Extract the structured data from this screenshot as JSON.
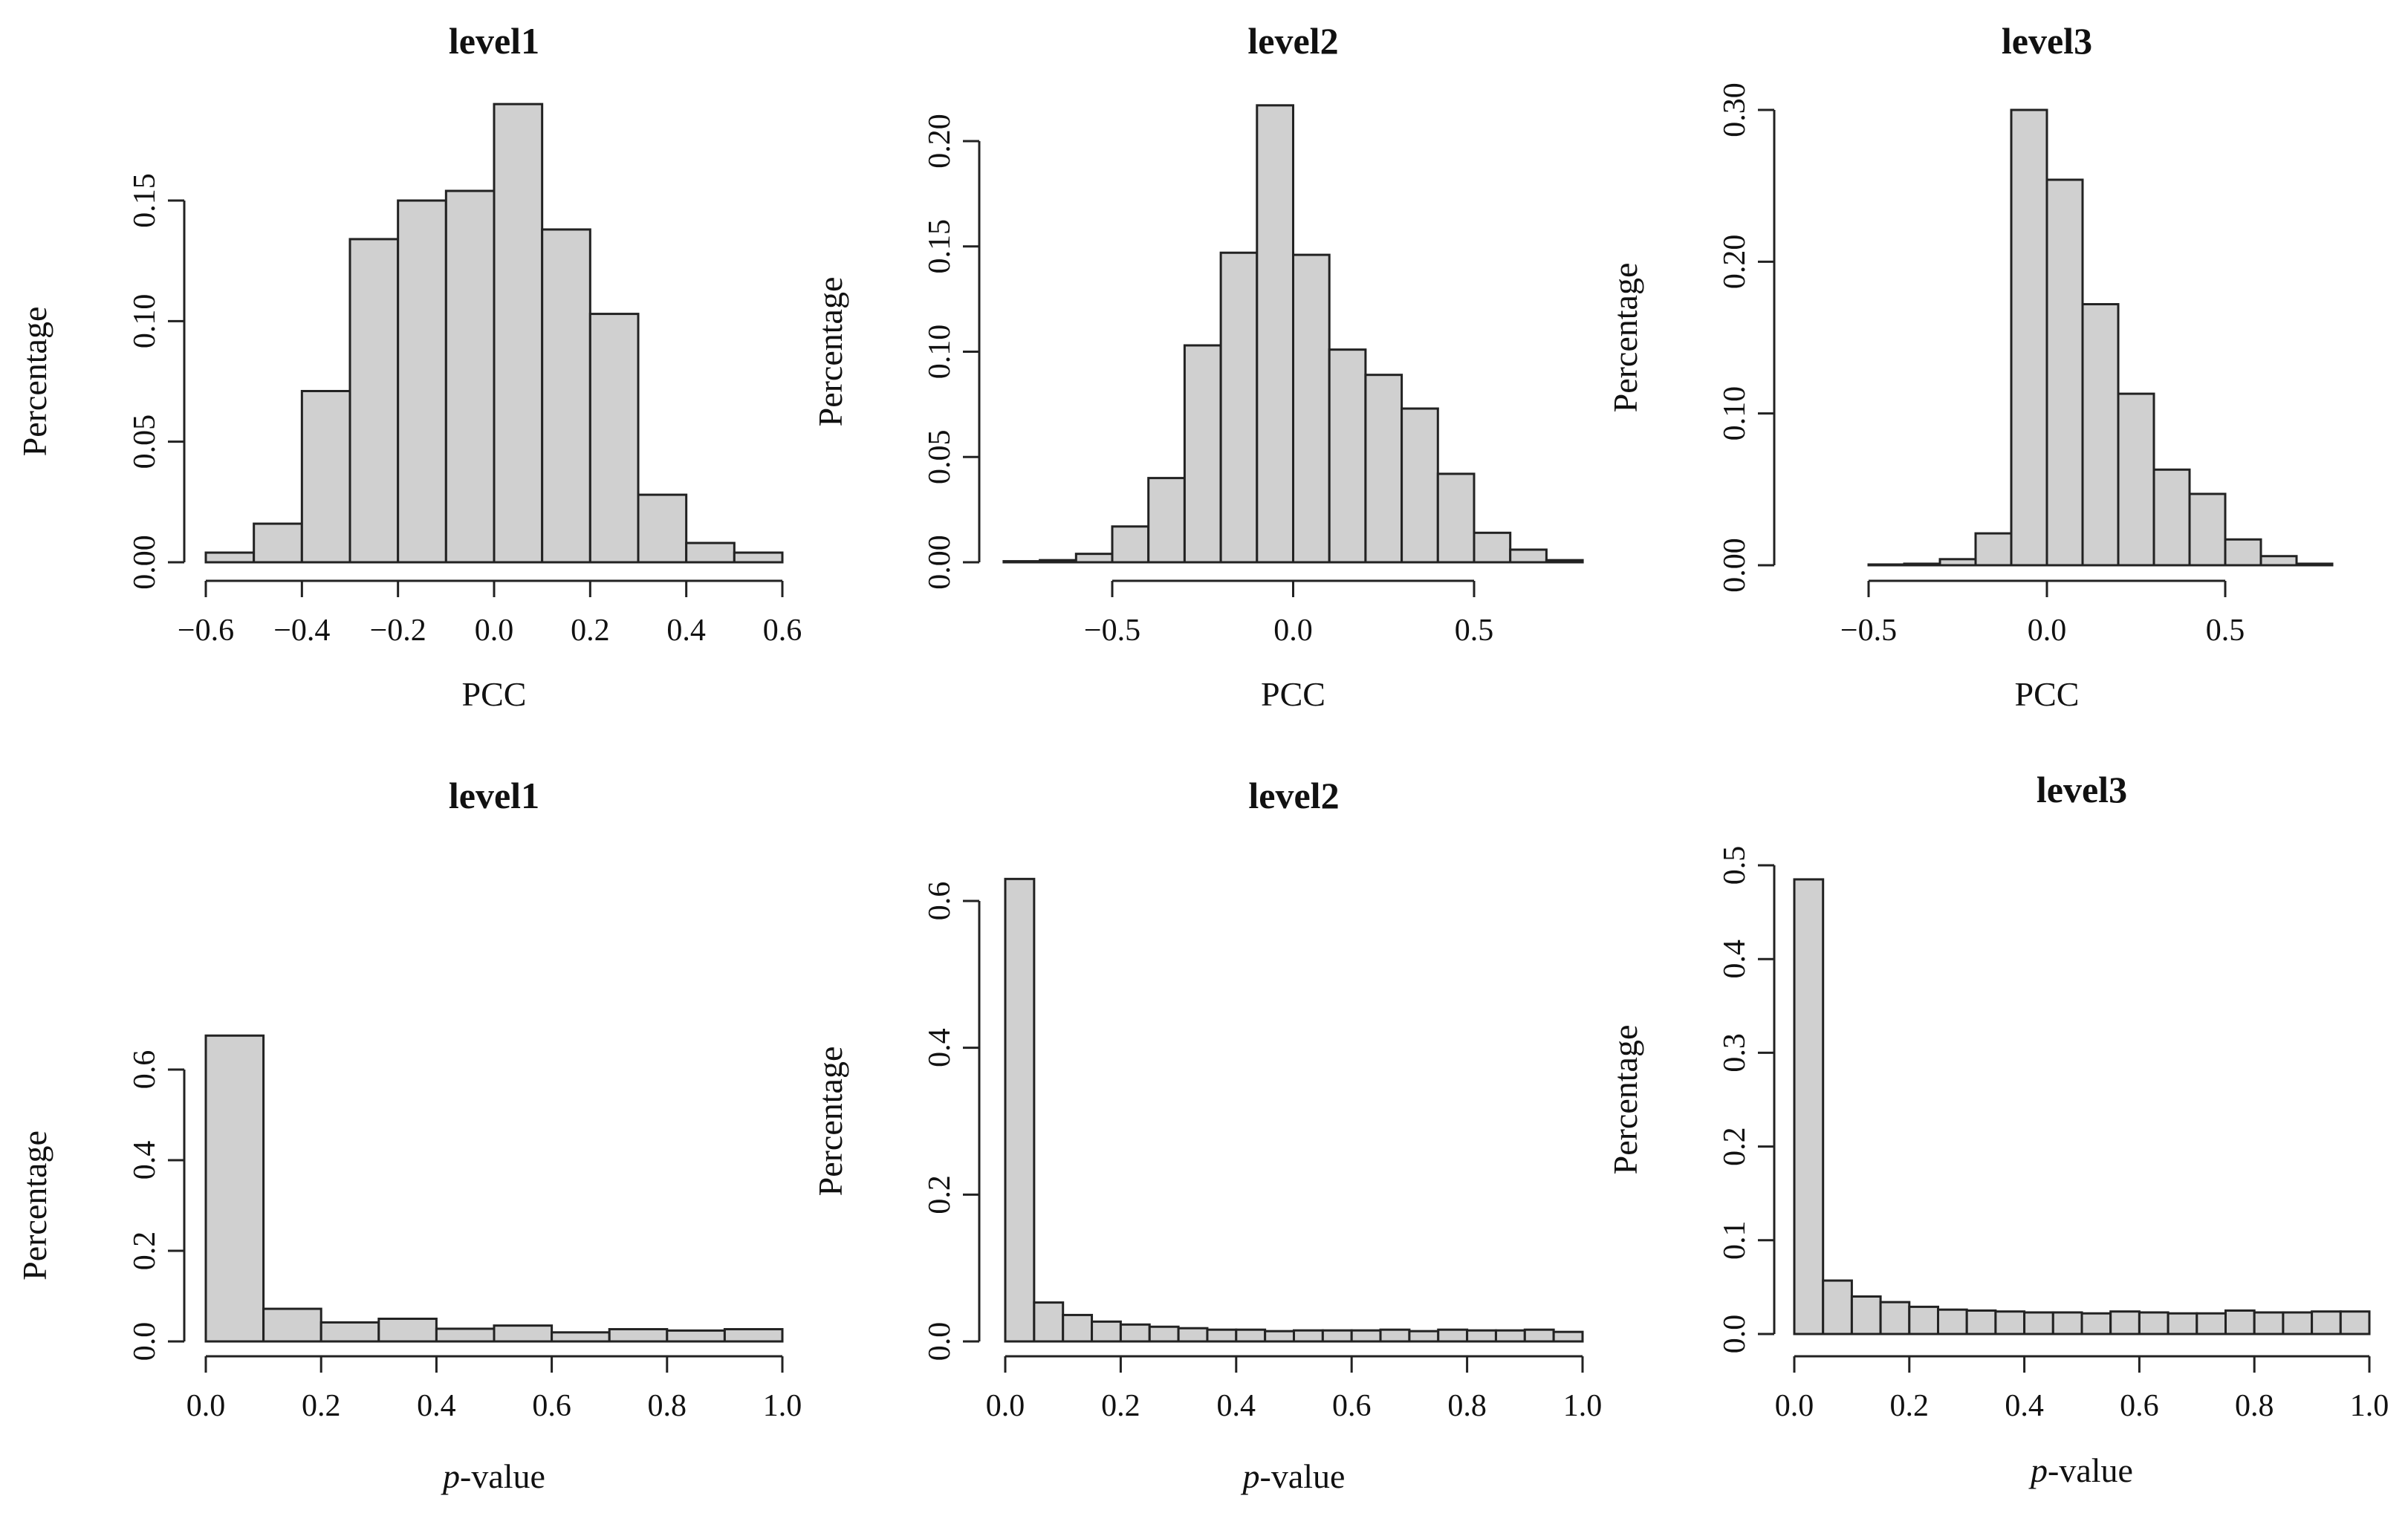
{
  "chart_data": [
    {
      "type": "bar",
      "title": "level1",
      "xlabel": "PCC",
      "ylabel": "Percentage",
      "xlim": [
        -0.6,
        0.6
      ],
      "ylim": [
        0,
        0.15
      ],
      "xticks": [
        -0.6,
        -0.4,
        -0.2,
        0.0,
        0.2,
        0.4,
        0.6
      ],
      "xtick_labels": [
        "−0.6",
        "−0.4",
        "−0.2",
        "0.0",
        "0.2",
        "0.4",
        "0.6"
      ],
      "yticks": [
        0,
        0.05,
        0.1,
        0.15
      ],
      "ytick_labels": [
        "0.00",
        "0.05",
        "0.10",
        "0.15"
      ],
      "bin_start": -0.6,
      "bin_width": 0.1,
      "values": [
        0.004,
        0.016,
        0.071,
        0.134,
        0.15,
        0.154,
        0.19,
        0.138,
        0.103,
        0.028,
        0.008,
        0.004
      ]
    },
    {
      "type": "bar",
      "title": "level2",
      "xlabel": "PCC",
      "ylabel": "Percentage",
      "xlim": [
        -0.5,
        0.5
      ],
      "ylim": [
        0,
        0.2
      ],
      "xticks": [
        -0.5,
        0.0,
        0.5
      ],
      "xtick_labels": [
        "−0.5",
        "0.0",
        "0.5"
      ],
      "yticks": [
        0,
        0.05,
        0.1,
        0.15,
        0.2
      ],
      "ytick_labels": [
        "0.00",
        "0.05",
        "0.10",
        "0.15",
        "0.20"
      ],
      "bin_start": -0.8,
      "bin_width": 0.1,
      "values": [
        0.0005,
        0.001,
        0.004,
        0.017,
        0.04,
        0.103,
        0.147,
        0.217,
        0.146,
        0.101,
        0.089,
        0.073,
        0.042,
        0.014,
        0.006,
        0.001
      ]
    },
    {
      "type": "bar",
      "title": "level3",
      "xlabel": "PCC",
      "ylabel": "Percentage",
      "xlim": [
        -0.5,
        0.5
      ],
      "ylim": [
        0,
        0.3
      ],
      "xticks": [
        -0.5,
        0.0,
        0.5
      ],
      "xtick_labels": [
        "−0.5",
        "0.0",
        "0.5"
      ],
      "yticks": [
        0,
        0.1,
        0.2,
        0.3
      ],
      "ytick_labels": [
        "0.00",
        "0.10",
        "0.20",
        "0.30"
      ],
      "bin_start": -0.7,
      "bin_width": 0.1,
      "values": [
        0.0,
        0.0,
        0.0005,
        0.001,
        0.004,
        0.021,
        0.3,
        0.254,
        0.172,
        0.113,
        0.063,
        0.047,
        0.017,
        0.006,
        0.001,
        0.0
      ]
    },
    {
      "type": "bar",
      "title": "level1",
      "xlabel_italic": "p",
      "xlabel_rest": "-value",
      "ylabel": "Percentage",
      "xlim": [
        0,
        1
      ],
      "ylim": [
        0,
        0.6
      ],
      "xticks": [
        0,
        0.2,
        0.4,
        0.6,
        0.8,
        1.0
      ],
      "xtick_labels": [
        "0.0",
        "0.2",
        "0.4",
        "0.6",
        "0.8",
        "1.0"
      ],
      "yticks": [
        0,
        0.2,
        0.4,
        0.6
      ],
      "ytick_labels": [
        "0.0",
        "0.2",
        "0.4",
        "0.6"
      ],
      "bin_start": 0,
      "bin_width": 0.1,
      "values": [
        0.675,
        0.072,
        0.042,
        0.05,
        0.028,
        0.035,
        0.02,
        0.027,
        0.024,
        0.027
      ]
    },
    {
      "type": "bar",
      "title": "level2",
      "xlabel_italic": "p",
      "xlabel_rest": "-value",
      "ylabel": "Percentage",
      "xlim": [
        0,
        1
      ],
      "ylim": [
        0,
        0.6
      ],
      "xticks": [
        0,
        0.2,
        0.4,
        0.6,
        0.8,
        1.0
      ],
      "xtick_labels": [
        "0.0",
        "0.2",
        "0.4",
        "0.6",
        "0.8",
        "1.0"
      ],
      "yticks": [
        0,
        0.2,
        0.4,
        0.6
      ],
      "ytick_labels": [
        "0.0",
        "0.2",
        "0.4",
        "0.6"
      ],
      "bin_start": 0,
      "bin_width": 0.05,
      "values": [
        0.63,
        0.053,
        0.036,
        0.027,
        0.023,
        0.02,
        0.018,
        0.016,
        0.016,
        0.014,
        0.015,
        0.015,
        0.015,
        0.016,
        0.014,
        0.016,
        0.015,
        0.015,
        0.016,
        0.013
      ]
    },
    {
      "type": "bar",
      "title": "level3",
      "xlabel_italic": "p",
      "xlabel_rest": "-value",
      "ylabel": "Percentage",
      "xlim": [
        0,
        1
      ],
      "ylim": [
        0,
        0.5
      ],
      "xticks": [
        0,
        0.2,
        0.4,
        0.6,
        0.8,
        1.0
      ],
      "xtick_labels": [
        "0.0",
        "0.2",
        "0.4",
        "0.6",
        "0.8",
        "1.0"
      ],
      "yticks": [
        0,
        0.1,
        0.2,
        0.3,
        0.4,
        0.5
      ],
      "ytick_labels": [
        "0.0",
        "0.1",
        "0.2",
        "0.3",
        "0.4",
        "0.5"
      ],
      "bin_start": 0,
      "bin_width": 0.05,
      "values": [
        0.485,
        0.057,
        0.04,
        0.034,
        0.029,
        0.026,
        0.025,
        0.024,
        0.023,
        0.023,
        0.022,
        0.024,
        0.023,
        0.022,
        0.022,
        0.025,
        0.023,
        0.023,
        0.024,
        0.024
      ]
    }
  ]
}
